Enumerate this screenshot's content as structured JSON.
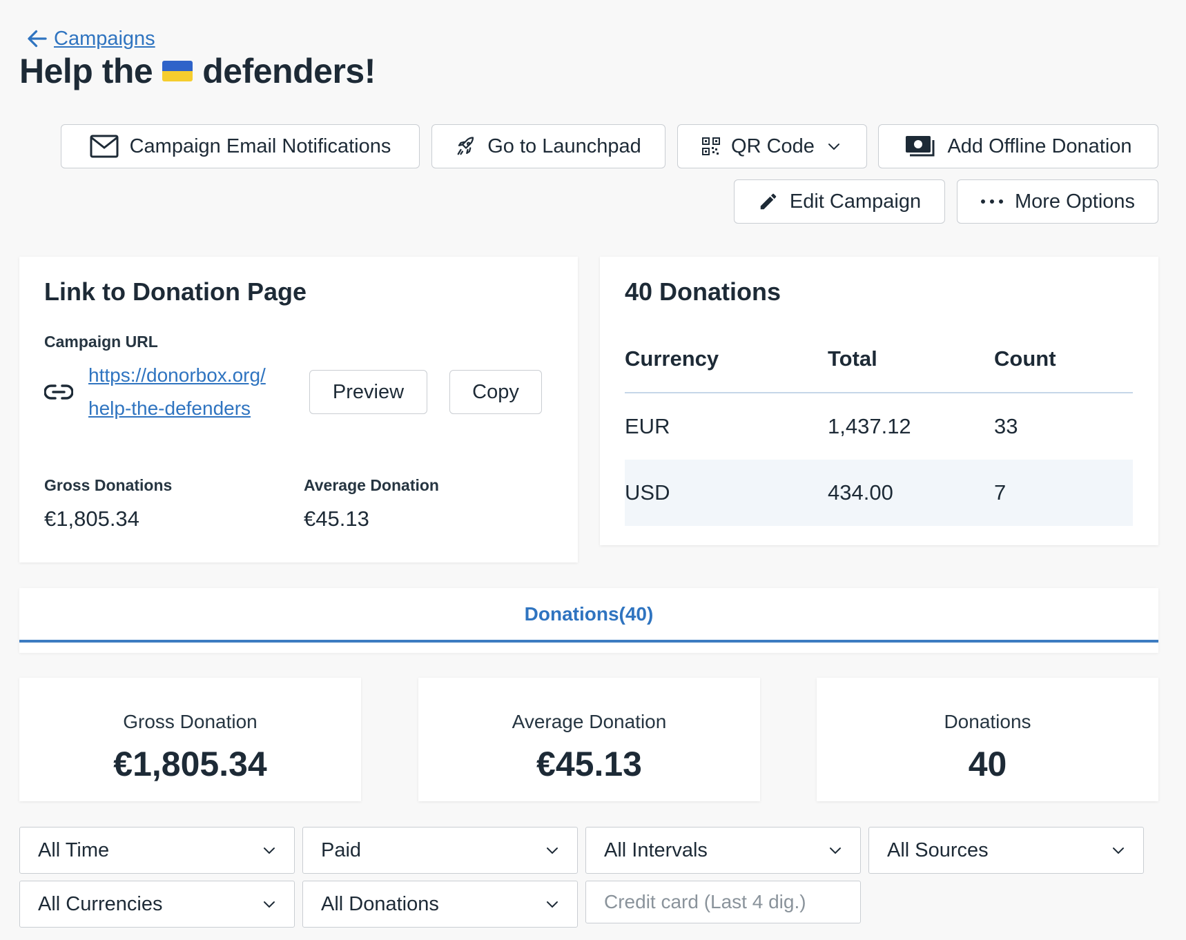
{
  "breadcrumb": {
    "label": "Campaigns"
  },
  "title": {
    "before": "Help the",
    "after": "defenders!"
  },
  "actions": {
    "email_notifications": "Campaign Email Notifications",
    "launchpad": "Go to Launchpad",
    "qr_code": "QR Code",
    "offline_donation": "Add Offline Donation",
    "edit_campaign": "Edit Campaign",
    "more_options": "More Options"
  },
  "link_card": {
    "title": "Link to Donation Page",
    "url_label": "Campaign URL",
    "url_line1": "https://donorbox.org/",
    "url_line2": "help-the-defenders",
    "preview": "Preview",
    "copy": "Copy",
    "gross_label": "Gross Donations",
    "gross_value": "€1,805.34",
    "average_label": "Average Donation",
    "average_value": "€45.13"
  },
  "donations_card": {
    "title": "40 Donations",
    "columns": [
      "Currency",
      "Total",
      "Count"
    ],
    "rows": [
      {
        "currency": "EUR",
        "total": "1,437.12",
        "count": "33"
      },
      {
        "currency": "USD",
        "total": "434.00",
        "count": "7"
      }
    ]
  },
  "tab": {
    "label": "Donations(40)"
  },
  "stats": {
    "gross_label": "Gross Donation",
    "gross_value": "€1,805.34",
    "average_label": "Average Donation",
    "average_value": "€45.13",
    "count_label": "Donations",
    "count_value": "40"
  },
  "filters": {
    "time": "All Time",
    "status": "Paid",
    "intervals": "All Intervals",
    "sources": "All Sources",
    "currencies": "All Currencies",
    "donations": "All Donations",
    "card_placeholder": "Credit card (Last 4 dig.)"
  },
  "colors": {
    "link": "#2f74c0",
    "row_highlight": "#f2f6fa",
    "divider": "#c5d6e8"
  },
  "icons": [
    "arrow-left-icon",
    "mail-icon",
    "rocket-icon",
    "qr-code-icon",
    "chevron-down-icon",
    "cash-icon",
    "pencil-icon",
    "ellipsis-icon",
    "link-icon"
  ]
}
